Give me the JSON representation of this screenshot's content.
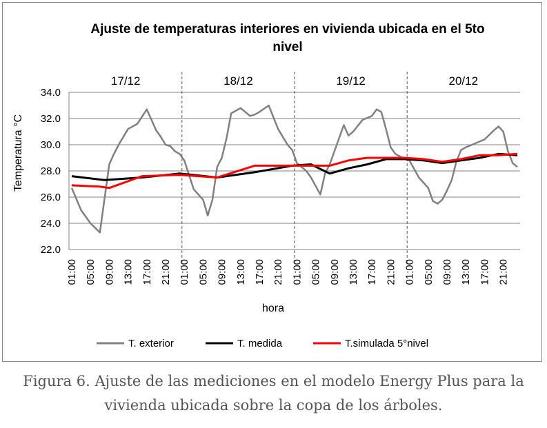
{
  "chart_data": {
    "type": "line",
    "title_lines": [
      "Ajuste de temperaturas interiores en vivienda ubicada en el 5to",
      "nivel"
    ],
    "xlabel": "hora",
    "ylabel": "Temperatura °C",
    "ylim": [
      22.0,
      34.0
    ],
    "yticks": [
      "34.0",
      "32.0",
      "30.0",
      "28.0",
      "26.0",
      "24.0",
      "22.0"
    ],
    "ytick_values": [
      34,
      32,
      30,
      28,
      26,
      24,
      22
    ],
    "days": [
      "17/12",
      "18/12",
      "19/12",
      "20/12"
    ],
    "hour_labels": [
      "01:00",
      "05:00",
      "09:00",
      "13:00",
      "17:00",
      "21:00"
    ],
    "grid": "horizontal",
    "legend_position": "bottom",
    "colors": {
      "exterior": "#808080",
      "medida": "#000000",
      "simulada": "#ff0000"
    },
    "series": [
      {
        "name": "T. exterior",
        "x": [
          1,
          3,
          5,
          7,
          9,
          10,
          11,
          13,
          15,
          17,
          19,
          20,
          21,
          22,
          23,
          24,
          25,
          27,
          29,
          30,
          31,
          32,
          33,
          34,
          35,
          37,
          39,
          40,
          41,
          43,
          45,
          46,
          47,
          48,
          49,
          51,
          52,
          54,
          55,
          56,
          57,
          58,
          59,
          60,
          61,
          63,
          65,
          66,
          67,
          68,
          69,
          70,
          71,
          72,
          73,
          75,
          77,
          78,
          79,
          80,
          81,
          82,
          83,
          84,
          85,
          87,
          89,
          91,
          92,
          93,
          94,
          95,
          96
        ],
        "y": [
          26.7,
          25.0,
          24.0,
          23.3,
          28.5,
          29.3,
          30.0,
          31.2,
          31.6,
          32.7,
          31.1,
          30.6,
          30.0,
          29.9,
          29.5,
          29.3,
          28.8,
          26.6,
          25.8,
          24.6,
          25.8,
          28.3,
          29.0,
          30.5,
          32.4,
          32.8,
          32.2,
          32.3,
          32.5,
          33.0,
          31.2,
          30.6,
          30.0,
          29.6,
          28.6,
          28.0,
          27.5,
          26.2,
          27.8,
          28.5,
          29.5,
          30.5,
          31.5,
          30.7,
          31.0,
          31.9,
          32.2,
          32.7,
          32.5,
          31.2,
          29.8,
          29.3,
          29.1,
          28.9,
          28.8,
          27.5,
          26.7,
          25.7,
          25.5,
          25.8,
          26.5,
          27.3,
          28.7,
          29.6,
          29.8,
          30.1,
          30.4,
          31.1,
          31.4,
          31.0,
          29.5,
          28.6,
          28.3
        ]
      },
      {
        "name": "T. medida",
        "x": [
          1,
          8,
          16,
          24,
          32,
          40,
          48,
          52,
          56,
          60,
          64,
          68,
          72,
          76,
          80,
          84,
          88,
          92,
          96
        ],
        "y": [
          27.6,
          27.3,
          27.5,
          27.8,
          27.5,
          27.9,
          28.4,
          28.5,
          27.8,
          28.2,
          28.5,
          28.9,
          28.9,
          28.8,
          28.6,
          28.8,
          29.0,
          29.3,
          29.2
        ]
      },
      {
        "name": "T.simulada 5°nivel",
        "x": [
          1,
          7,
          9,
          16,
          24,
          32,
          40,
          48,
          56,
          60,
          64,
          68,
          72,
          76,
          80,
          84,
          88,
          92,
          96
        ],
        "y": [
          26.9,
          26.8,
          26.7,
          27.6,
          27.7,
          27.5,
          28.4,
          28.4,
          28.4,
          28.8,
          29.0,
          29.0,
          29.0,
          28.9,
          28.7,
          28.9,
          29.2,
          29.2,
          29.3
        ]
      }
    ]
  },
  "caption": {
    "line1": "Figura 6. Ajuste de las mediciones en el modelo Energy Plus para la",
    "line2": "vivienda ubicada sobre la copa de los árboles."
  }
}
